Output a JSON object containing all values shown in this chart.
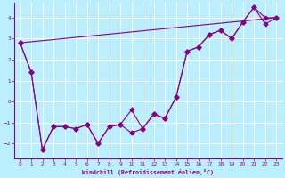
{
  "bg_color": "#bbeeff",
  "grid_color": "#ffffff",
  "line_color": "#880088",
  "xlim": [
    -0.5,
    23.5
  ],
  "ylim": [
    -2.7,
    4.7
  ],
  "xticks": [
    0,
    1,
    2,
    3,
    4,
    5,
    6,
    7,
    8,
    9,
    10,
    11,
    12,
    13,
    14,
    15,
    16,
    17,
    18,
    19,
    20,
    21,
    22,
    23
  ],
  "yticks": [
    -2,
    -1,
    0,
    1,
    2,
    3,
    4
  ],
  "xlabel": "Windchill (Refroidissement éolien,°C)",
  "series1_x": [
    0,
    1,
    2,
    3,
    4,
    5,
    6,
    7,
    8,
    9,
    10,
    11,
    12,
    13,
    14,
    15,
    16,
    17,
    18,
    19,
    20,
    21,
    22,
    23
  ],
  "series1_y": [
    2.8,
    1.4,
    -2.3,
    -1.2,
    -1.2,
    -1.3,
    -1.1,
    -2.0,
    -1.2,
    -1.1,
    -1.5,
    -1.3,
    -0.6,
    -0.8,
    0.2,
    2.4,
    2.6,
    3.2,
    3.4,
    3.0,
    3.8,
    4.5,
    4.0,
    4.0
  ],
  "series2_x": [
    0,
    1,
    2,
    3,
    4,
    5,
    6,
    7,
    8,
    9,
    10,
    11,
    12,
    13,
    14,
    15,
    16,
    17,
    18,
    19,
    20,
    21,
    22,
    23
  ],
  "series2_y": [
    2.8,
    1.4,
    -2.3,
    -1.2,
    -1.2,
    -1.3,
    -1.1,
    -2.0,
    -1.2,
    -1.1,
    -0.4,
    -1.3,
    -0.6,
    -0.8,
    0.2,
    2.4,
    2.6,
    3.2,
    3.4,
    3.0,
    3.8,
    4.5,
    3.7,
    4.0
  ],
  "series3_x": [
    0,
    23
  ],
  "series3_y": [
    2.8,
    4.0
  ],
  "figwidth": 3.2,
  "figheight": 2.0,
  "dpi": 100
}
